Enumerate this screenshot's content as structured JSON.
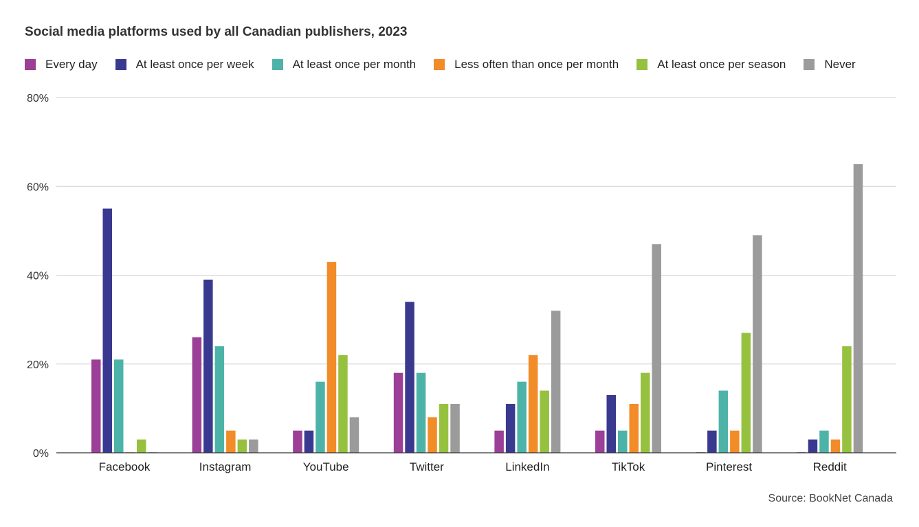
{
  "chart_data": {
    "type": "bar",
    "title": "Social media platforms used by all Canadian publishers, 2023",
    "categories": [
      "Facebook",
      "Instagram",
      "YouTube",
      "Twitter",
      "LinkedIn",
      "TikTok",
      "Pinterest",
      "Reddit"
    ],
    "series": [
      {
        "name": "Every day",
        "color": "#9c3f97",
        "values": [
          21,
          26,
          5,
          18,
          5,
          5,
          0,
          0
        ]
      },
      {
        "name": "At least once per week",
        "color": "#3a3990",
        "values": [
          55,
          39,
          5,
          34,
          11,
          13,
          5,
          3
        ]
      },
      {
        "name": "At least once per month",
        "color": "#4db3a8",
        "values": [
          21,
          24,
          16,
          18,
          16,
          5,
          14,
          5
        ]
      },
      {
        "name": "Less often than once per month",
        "color": "#f28c28",
        "values": [
          0,
          5,
          43,
          8,
          22,
          11,
          5,
          3
        ]
      },
      {
        "name": "At least once per season",
        "color": "#96c13f",
        "values": [
          3,
          3,
          22,
          11,
          14,
          18,
          27,
          24
        ]
      },
      {
        "name": "Never",
        "color": "#9b9b9b",
        "values": [
          0,
          3,
          8,
          11,
          32,
          47,
          49,
          65
        ]
      }
    ],
    "ylim": [
      0,
      80
    ],
    "yticks": [
      0,
      20,
      40,
      60,
      80
    ],
    "ytick_labels": [
      "0%",
      "20%",
      "40%",
      "60%",
      "80%"
    ],
    "xlabel": "",
    "ylabel": "",
    "grid": true,
    "legend_position": "top",
    "source": "Source: BookNet Canada"
  }
}
